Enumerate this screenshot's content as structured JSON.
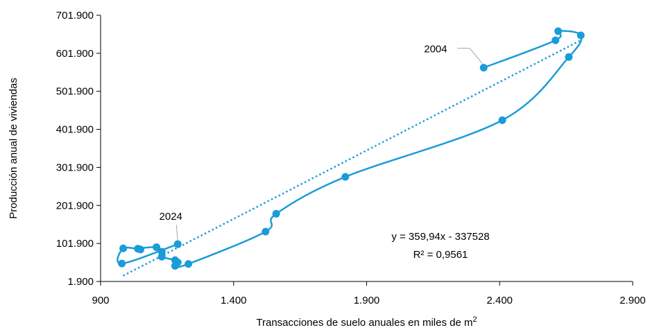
{
  "chart_data": {
    "type": "scatter",
    "xlabel": "Transacciones de suelo anuales en miles de m",
    "xlabel_superscript": "2",
    "ylabel": "Producción anual de viviendas",
    "x_ticks": [
      "900",
      "1.400",
      "1.900",
      "2.400",
      "2.900"
    ],
    "y_ticks": [
      "1.900",
      "101.900",
      "201.900",
      "301.900",
      "401.900",
      "501.900",
      "601.900",
      "701.900"
    ],
    "xlim": [
      900,
      2900
    ],
    "ylim": [
      1900,
      701900
    ],
    "grid": false,
    "legend": "none",
    "series_color": "#1a9cd8",
    "points": [
      {
        "year": "2004",
        "x": 2340,
        "y": 564000
      },
      {
        "x": 2610,
        "y": 636000
      },
      {
        "x": 2620,
        "y": 660000
      },
      {
        "x": 2705,
        "y": 649000
      },
      {
        "x": 2660,
        "y": 592000
      },
      {
        "x": 2410,
        "y": 426000
      },
      {
        "x": 1820,
        "y": 277000
      },
      {
        "x": 1560,
        "y": 180000
      },
      {
        "x": 1520,
        "y": 133000
      },
      {
        "x": 1230,
        "y": 48000
      },
      {
        "x": 1180,
        "y": 43000
      },
      {
        "x": 1190,
        "y": 52000
      },
      {
        "x": 1180,
        "y": 58000
      },
      {
        "x": 1130,
        "y": 67000
      },
      {
        "x": 1130,
        "y": 80000
      },
      {
        "x": 1110,
        "y": 92000
      },
      {
        "x": 1040,
        "y": 88000
      },
      {
        "x": 1050,
        "y": 86000
      },
      {
        "x": 985,
        "y": 89000
      },
      {
        "x": 980,
        "y": 49000
      },
      {
        "year": "2024",
        "x": 1190,
        "y": 100000
      }
    ],
    "trendline": {
      "slope": 359.94,
      "intercept": -337528,
      "x_range": [
        985,
        2705
      ],
      "equation": "y = 359,94x - 337528",
      "r_squared": "R² = 0,9561"
    },
    "annotations": [
      "2004",
      "2024"
    ]
  }
}
